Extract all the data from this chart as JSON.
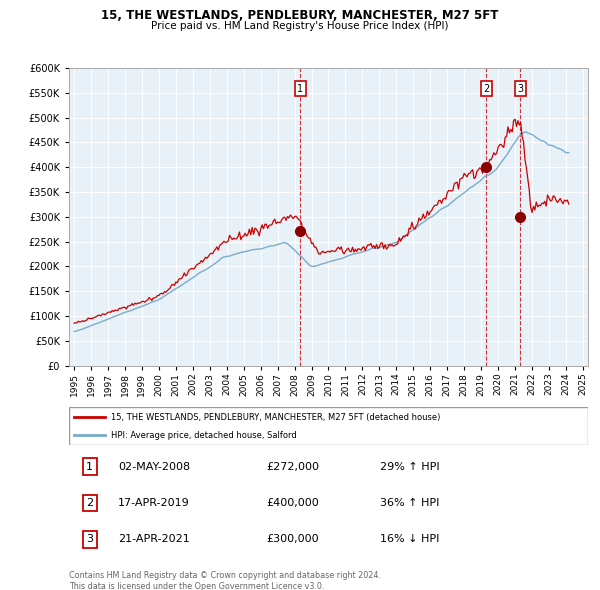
{
  "title": "15, THE WESTLANDS, PENDLEBURY, MANCHESTER, M27 5FT",
  "subtitle": "Price paid vs. HM Land Registry's House Price Index (HPI)",
  "legend_label_red": "15, THE WESTLANDS, PENDLEBURY, MANCHESTER, M27 5FT (detached house)",
  "legend_label_blue": "HPI: Average price, detached house, Salford",
  "footer_line1": "Contains HM Land Registry data © Crown copyright and database right 2024.",
  "footer_line2": "This data is licensed under the Open Government Licence v3.0.",
  "transaction_years": [
    2008.33,
    2019.29,
    2021.3
  ],
  "transaction_values": [
    272000,
    400000,
    300000
  ],
  "transaction_labels": [
    "1",
    "2",
    "3"
  ],
  "table_rows": [
    [
      "1",
      "02-MAY-2008",
      "£272,000",
      "29% ↑ HPI"
    ],
    [
      "2",
      "17-APR-2019",
      "£400,000",
      "36% ↑ HPI"
    ],
    [
      "3",
      "21-APR-2021",
      "£300,000",
      "16% ↓ HPI"
    ]
  ],
  "red_color": "#cc0000",
  "blue_color": "#7aadcc",
  "chart_bg": "#e8f0f8",
  "ylim_max": 600000,
  "yticks": [
    0,
    50000,
    100000,
    150000,
    200000,
    250000,
    300000,
    350000,
    400000,
    450000,
    500000,
    550000,
    600000
  ],
  "xlim": [
    1994.7,
    2025.3
  ],
  "xticks": [
    1995,
    1996,
    1997,
    1998,
    1999,
    2000,
    2001,
    2002,
    2003,
    2004,
    2005,
    2006,
    2007,
    2008,
    2009,
    2010,
    2011,
    2012,
    2013,
    2014,
    2015,
    2016,
    2017,
    2018,
    2019,
    2020,
    2021,
    2022,
    2023,
    2024,
    2025
  ]
}
